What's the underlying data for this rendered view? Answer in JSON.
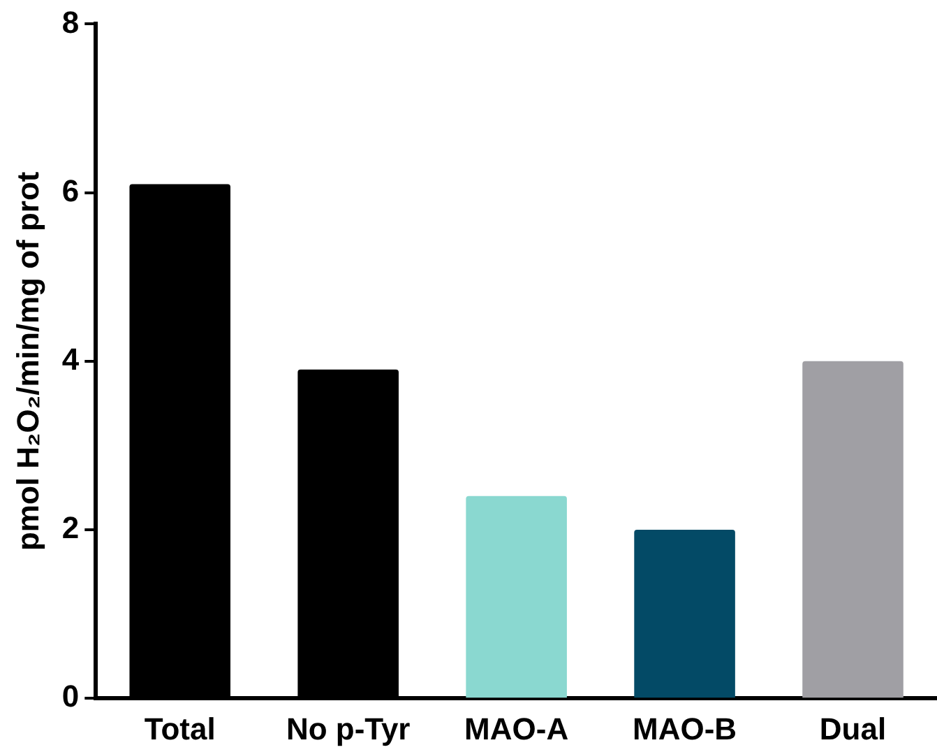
{
  "chart_data": {
    "type": "bar",
    "ylabel": "pmol H₂O₂/min/mg of prot",
    "categories": [
      "Total",
      "No p-Tyr",
      "MAO-A",
      "MAO-B",
      "Dual"
    ],
    "values": [
      6.1,
      3.9,
      2.4,
      2.0,
      4.0
    ],
    "colors": [
      "#000000",
      "#000000",
      "#8ad8d0",
      "#034a66",
      "#a09fa4"
    ],
    "ylim": [
      0,
      8
    ],
    "yticks": [
      0,
      2,
      4,
      6,
      8
    ],
    "grid": false,
    "legend": false
  }
}
